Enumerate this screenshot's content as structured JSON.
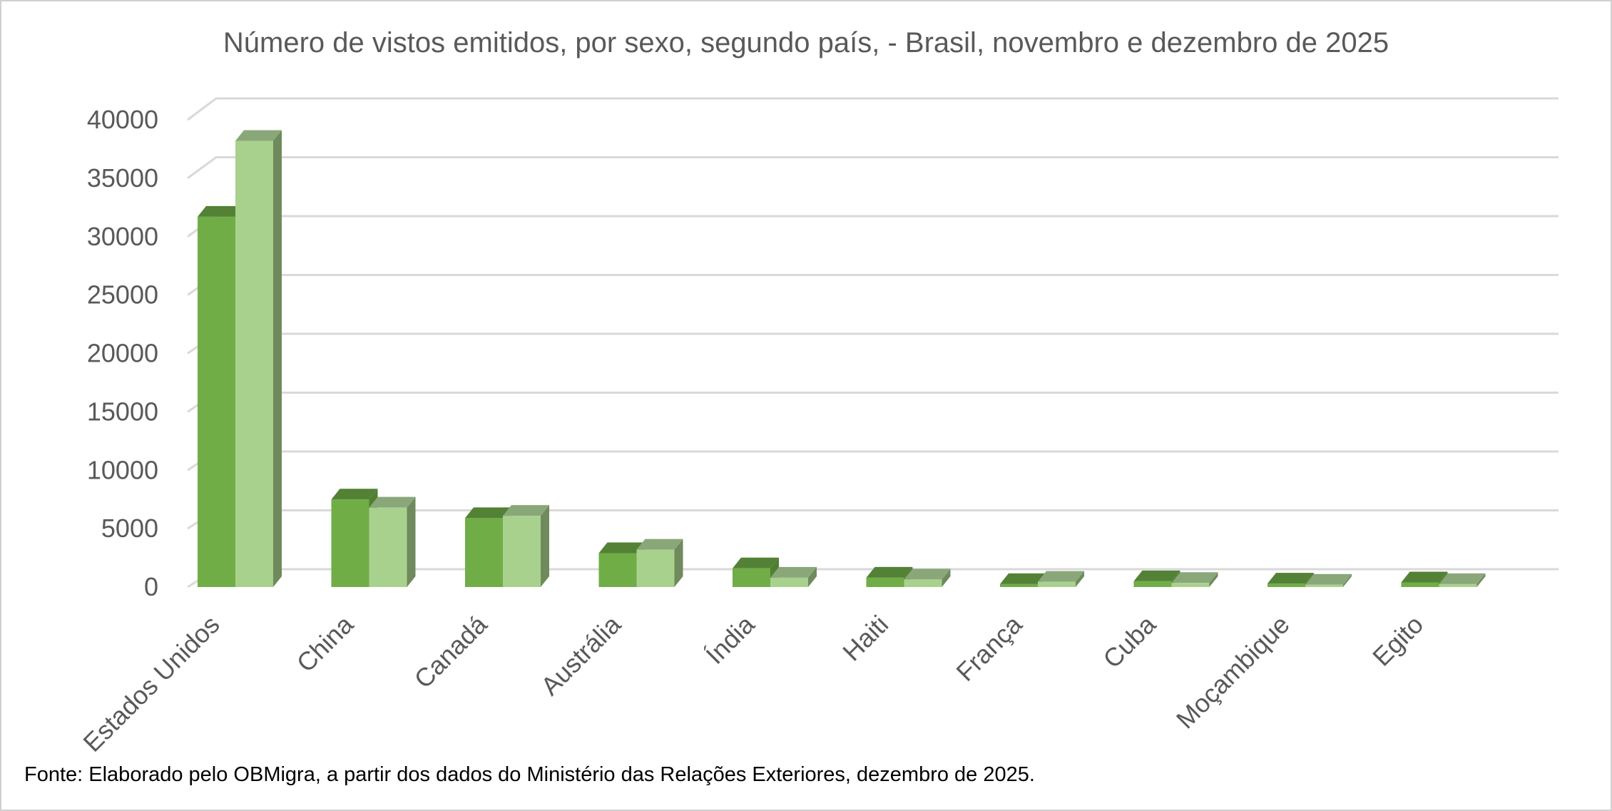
{
  "chart_data": {
    "type": "bar",
    "title": "Número de vistos emitidos, por sexo, segundo país, - Brasil, novembro e  dezembro de 2025",
    "categories": [
      "Estados Unidos",
      "China",
      "Canadá",
      "Austrália",
      "Índia",
      "Haiti",
      "França",
      "Cuba",
      "Moçambique",
      "Egito"
    ],
    "series": [
      {
        "values": [
          31700,
          7500,
          5900,
          2900,
          1600,
          800,
          250,
          500,
          300,
          400
        ]
      },
      {
        "values": [
          38200,
          6800,
          6100,
          3200,
          800,
          650,
          450,
          350,
          200,
          250
        ]
      }
    ],
    "ylim": [
      0,
      40000
    ],
    "yticks": [
      0,
      5000,
      10000,
      15000,
      20000,
      25000,
      30000,
      35000,
      40000
    ],
    "grid": true,
    "colors": {
      "series1_front": "#70ad47",
      "series1_top": "#538135",
      "series1_side": "#507e32",
      "series2_front": "#a9d18e",
      "series2_top": "#8aa77a",
      "series2_side": "#6f8a5c",
      "grid": "#d9d9d9",
      "text": "#595959"
    }
  },
  "footer": {
    "source": "Fonte: Elaborado pelo OBMigra,  a partir dos dados do Ministério das Relações Exteriores, dezembro de 2025."
  }
}
